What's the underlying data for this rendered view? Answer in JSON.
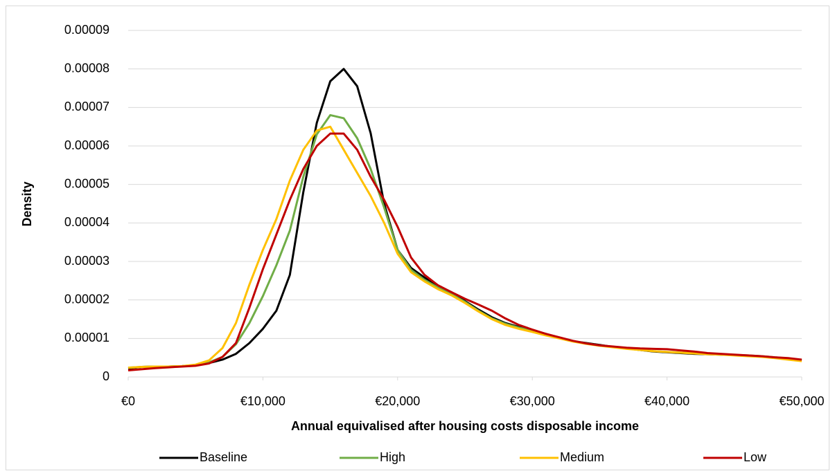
{
  "chart_data": {
    "type": "line",
    "x_label": "Annual equivalised after housing costs disposable income",
    "y_label": "Density",
    "x": [
      0,
      1000,
      2000,
      3000,
      4000,
      5000,
      6000,
      7000,
      8000,
      9000,
      10000,
      11000,
      12000,
      13000,
      14000,
      15000,
      16000,
      17000,
      18000,
      19000,
      20000,
      21000,
      22000,
      23000,
      24000,
      25000,
      26000,
      27000,
      28000,
      29000,
      30000,
      31000,
      32000,
      33000,
      34000,
      35000,
      36000,
      37000,
      38000,
      39000,
      40000,
      41000,
      42000,
      43000,
      44000,
      45000,
      46000,
      47000,
      48000,
      49000,
      50000
    ],
    "series": [
      {
        "name": "Baseline",
        "color": "#000000",
        "values": [
          2.2e-06,
          2.6e-06,
          2.7e-06,
          2.7e-06,
          2.8e-06,
          3e-06,
          3.6e-06,
          4.5e-06,
          6e-06,
          8.8e-06,
          1.25e-05,
          1.72e-05,
          2.65e-05,
          4.8e-05,
          6.6e-05,
          7.68e-05,
          8e-05,
          7.55e-05,
          6.33e-05,
          4.5e-05,
          3.3e-05,
          2.83e-05,
          2.58e-05,
          2.37e-05,
          2.2e-05,
          1.97e-05,
          1.75e-05,
          1.55e-05,
          1.4e-05,
          1.3e-05,
          1.21e-05,
          1.12e-05,
          1.02e-05,
          9.3e-06,
          8.8e-06,
          8.3e-06,
          7.8e-06,
          7.4e-06,
          7e-06,
          6.6e-06,
          6.4e-06,
          6.2e-06,
          6e-06,
          5.9e-06,
          5.8e-06,
          5.7e-06,
          5.5e-06,
          5.3e-06,
          5e-06,
          4.8e-06,
          4.4e-06
        ]
      },
      {
        "name": "High",
        "color": "#70ad47",
        "values": [
          2.4e-06,
          2.6e-06,
          2.7e-06,
          2.7e-06,
          2.8e-06,
          3.1e-06,
          3.8e-06,
          5.2e-06,
          8.5e-06,
          1.4e-05,
          2.1e-05,
          2.9e-05,
          3.8e-05,
          5.2e-05,
          6.3e-05,
          6.8e-05,
          6.72e-05,
          6.2e-05,
          5.4e-05,
          4.4e-05,
          3.3e-05,
          2.78e-05,
          2.52e-05,
          2.32e-05,
          2.15e-05,
          1.95e-05,
          1.72e-05,
          1.52e-05,
          1.38e-05,
          1.28e-05,
          1.2e-05,
          1.11e-05,
          1.02e-05,
          9.3e-06,
          8.7e-06,
          8.2e-06,
          7.8e-06,
          7.4e-06,
          7e-06,
          6.7e-06,
          6.5e-06,
          6.3e-06,
          6.1e-06,
          6e-06,
          5.8e-06,
          5.7e-06,
          5.6e-06,
          5.4e-06,
          5.1e-06,
          4.8e-06,
          4.4e-06
        ]
      },
      {
        "name": "Medium",
        "color": "#ffc000",
        "values": [
          2.4e-06,
          2.6e-06,
          2.7e-06,
          2.7e-06,
          2.8e-06,
          3.2e-06,
          4.3e-06,
          7.5e-06,
          1.4e-05,
          2.4e-05,
          3.3e-05,
          4.1e-05,
          5.1e-05,
          5.9e-05,
          6.4e-05,
          6.5e-05,
          5.9e-05,
          5.3e-05,
          4.7e-05,
          4e-05,
          3.2e-05,
          2.72e-05,
          2.48e-05,
          2.28e-05,
          2.12e-05,
          1.92e-05,
          1.7e-05,
          1.5e-05,
          1.35e-05,
          1.25e-05,
          1.17e-05,
          1.08e-05,
          1e-05,
          9.2e-06,
          8.6e-06,
          8.1e-06,
          7.7e-06,
          7.3e-06,
          7e-06,
          6.7e-06,
          6.5e-06,
          6.3e-06,
          6.1e-06,
          5.9e-06,
          5.8e-06,
          5.6e-06,
          5.4e-06,
          5.2e-06,
          4.9e-06,
          4.5e-06,
          4.1e-06
        ]
      },
      {
        "name": "Low",
        "color": "#c00000",
        "values": [
          1.7e-06,
          2e-06,
          2.3e-06,
          2.5e-06,
          2.7e-06,
          2.9e-06,
          3.5e-06,
          5.2e-06,
          8.8e-06,
          1.8e-05,
          2.8e-05,
          3.7e-05,
          4.6e-05,
          5.4e-05,
          6e-05,
          6.32e-05,
          6.32e-05,
          5.9e-05,
          5.2e-05,
          4.6e-05,
          3.9e-05,
          3.1e-05,
          2.65e-05,
          2.38e-05,
          2.2e-05,
          2.03e-05,
          1.88e-05,
          1.72e-05,
          1.52e-05,
          1.35e-05,
          1.23e-05,
          1.12e-05,
          1.03e-05,
          9.4e-06,
          8.7e-06,
          8.2e-06,
          7.9e-06,
          7.6e-06,
          7.4e-06,
          7.3e-06,
          7.2e-06,
          6.9e-06,
          6.6e-06,
          6.2e-06,
          6e-06,
          5.8e-06,
          5.6e-06,
          5.4e-06,
          5.1e-06,
          4.9e-06,
          4.5e-06
        ]
      }
    ],
    "xlim": [
      0,
      50000
    ],
    "xticks": [
      {
        "value": 0,
        "label": "€0"
      },
      {
        "value": 10000,
        "label": "€10,000"
      },
      {
        "value": 20000,
        "label": "€20,000"
      },
      {
        "value": 30000,
        "label": "€30,000"
      },
      {
        "value": 40000,
        "label": "€40,000"
      },
      {
        "value": 50000,
        "label": "€50,000"
      }
    ],
    "ylim": [
      0,
      9e-05
    ],
    "yticks": [
      0,
      1e-05,
      2e-05,
      3e-05,
      4e-05,
      5e-05,
      6e-05,
      7e-05,
      8e-05,
      9e-05
    ],
    "grid": true,
    "legend": "bottom"
  }
}
